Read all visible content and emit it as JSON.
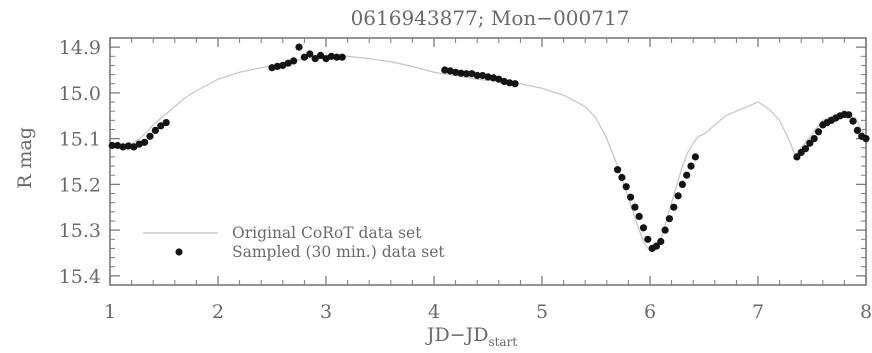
{
  "chart_data": {
    "type": "scatter",
    "title": "0616943877; Mon−000717",
    "xlabel": "JD−JD",
    "xlabel_sub": "start",
    "ylabel": "R mag",
    "xlim": [
      1,
      8
    ],
    "ylim": [
      15.42,
      14.88
    ],
    "y_inverted": true,
    "grid": false,
    "legend_position": "lower-left",
    "xticks": [
      "1",
      "2",
      "3",
      "4",
      "5",
      "6",
      "7",
      "8"
    ],
    "yticks": [
      "14.9",
      "15.0",
      "15.1",
      "15.2",
      "15.3",
      "15.4"
    ],
    "colors": {
      "line": "#c8c8c8",
      "points": "#141414",
      "text": "#6a6a6a",
      "axis": "#7a7a7a"
    },
    "series": [
      {
        "name": "Original CoRoT data set",
        "style": "line",
        "x": [
          1.0,
          1.1,
          1.2,
          1.3,
          1.4,
          1.5,
          1.6,
          1.7,
          1.8,
          1.9,
          2.0,
          2.2,
          2.4,
          2.6,
          2.8,
          3.0,
          3.2,
          3.4,
          3.6,
          3.8,
          4.0,
          4.2,
          4.4,
          4.6,
          4.8,
          5.0,
          5.2,
          5.4,
          5.5,
          5.6,
          5.7,
          5.75,
          5.8,
          5.85,
          5.9,
          5.95,
          6.0,
          6.05,
          6.1,
          6.15,
          6.2,
          6.25,
          6.3,
          6.35,
          6.4,
          6.45,
          6.5,
          6.6,
          6.7,
          6.8,
          6.9,
          7.0,
          7.1,
          7.2,
          7.3,
          7.35,
          7.4,
          7.5,
          7.6,
          7.7,
          7.8,
          7.9,
          8.0
        ],
        "y": [
          15.115,
          15.115,
          15.112,
          15.095,
          15.07,
          15.05,
          15.03,
          15.01,
          14.995,
          14.983,
          14.97,
          14.955,
          14.945,
          14.935,
          14.925,
          14.92,
          14.92,
          14.925,
          14.932,
          14.942,
          14.955,
          14.962,
          14.97,
          14.975,
          14.98,
          14.99,
          15.005,
          15.03,
          15.055,
          15.1,
          15.16,
          15.195,
          15.23,
          15.265,
          15.3,
          15.33,
          15.345,
          15.34,
          15.32,
          15.28,
          15.24,
          15.2,
          15.16,
          15.13,
          15.11,
          15.095,
          15.09,
          15.07,
          15.05,
          15.04,
          15.03,
          15.02,
          15.035,
          15.06,
          15.11,
          15.14,
          15.12,
          15.09,
          15.06,
          15.05,
          15.045,
          15.055,
          15.1
        ]
      },
      {
        "name": "Sampled (30 min.) data set",
        "style": "points",
        "x": [
          1.02,
          1.07,
          1.12,
          1.17,
          1.22,
          1.27,
          1.32,
          1.37,
          1.42,
          1.47,
          1.52,
          2.5,
          2.55,
          2.6,
          2.65,
          2.7,
          2.75,
          2.8,
          2.85,
          2.9,
          2.95,
          3.0,
          3.05,
          3.1,
          3.15,
          4.1,
          4.15,
          4.2,
          4.25,
          4.3,
          4.35,
          4.4,
          4.45,
          4.5,
          4.55,
          4.6,
          4.65,
          4.7,
          4.75,
          5.7,
          5.74,
          5.78,
          5.82,
          5.86,
          5.9,
          5.94,
          5.98,
          6.02,
          6.06,
          6.1,
          6.14,
          6.18,
          6.22,
          6.26,
          6.3,
          6.34,
          6.38,
          6.42,
          7.36,
          7.4,
          7.44,
          7.48,
          7.52,
          7.56,
          7.6,
          7.64,
          7.68,
          7.72,
          7.76,
          7.8,
          7.84,
          7.88,
          7.92,
          7.96,
          8.0
        ],
        "y": [
          15.115,
          15.115,
          15.118,
          15.116,
          15.118,
          15.112,
          15.108,
          15.095,
          15.082,
          15.072,
          15.065,
          14.945,
          14.942,
          14.94,
          14.935,
          14.93,
          14.9,
          14.922,
          14.915,
          14.925,
          14.918,
          14.925,
          14.92,
          14.922,
          14.922,
          14.95,
          14.952,
          14.955,
          14.957,
          14.958,
          14.958,
          14.962,
          14.962,
          14.965,
          14.967,
          14.97,
          14.975,
          14.978,
          14.98,
          15.168,
          15.185,
          15.205,
          15.228,
          15.25,
          15.27,
          15.295,
          15.32,
          15.34,
          15.335,
          15.325,
          15.3,
          15.275,
          15.25,
          15.225,
          15.2,
          15.18,
          15.16,
          15.14,
          15.14,
          15.13,
          15.122,
          15.11,
          15.1,
          15.085,
          15.07,
          15.065,
          15.06,
          15.055,
          15.05,
          15.047,
          15.048,
          15.062,
          15.082,
          15.095,
          15.1
        ]
      }
    ]
  }
}
